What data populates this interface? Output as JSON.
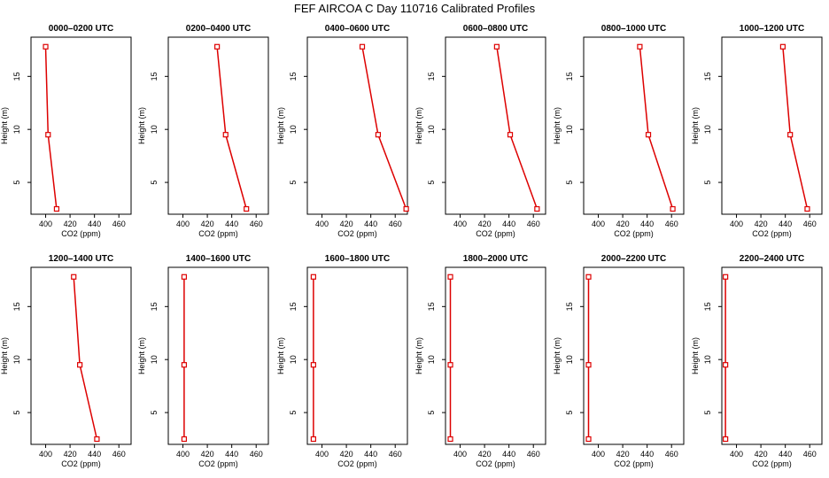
{
  "figure_title": "FEF AIRCOA C  Day 110716  Calibrated Profiles",
  "colors": {
    "series": "#dd0000",
    "frame": "#000000"
  },
  "chart_data": {
    "type": "line",
    "layout": "2 rows x 6 columns small multiples",
    "title": "FEF AIRCOA C  Day 110716  Calibrated Profiles",
    "xlabel": "CO2 (ppm)",
    "ylabel": "Height (m)",
    "xlim": [
      388,
      470
    ],
    "ylim": [
      2,
      18.7
    ],
    "xticks": [
      400,
      420,
      440,
      460
    ],
    "yticks": [
      5,
      10,
      15
    ],
    "panels": [
      {
        "title": "0000–0200 UTC",
        "points": [
          {
            "x": 409,
            "y": 2.5
          },
          {
            "x": 402,
            "y": 9.5
          },
          {
            "x": 400,
            "y": 17.8
          }
        ]
      },
      {
        "title": "0200–0400 UTC",
        "points": [
          {
            "x": 452,
            "y": 2.5
          },
          {
            "x": 435,
            "y": 9.5
          },
          {
            "x": 428,
            "y": 17.8
          }
        ]
      },
      {
        "title": "0400–0600 UTC",
        "points": [
          {
            "x": 469,
            "y": 2.5
          },
          {
            "x": 446,
            "y": 9.5
          },
          {
            "x": 433,
            "y": 17.8
          }
        ]
      },
      {
        "title": "0600–0800 UTC",
        "points": [
          {
            "x": 463,
            "y": 2.5
          },
          {
            "x": 441,
            "y": 9.5
          },
          {
            "x": 430,
            "y": 17.8
          }
        ]
      },
      {
        "title": "0800–1000 UTC",
        "points": [
          {
            "x": 461,
            "y": 2.5
          },
          {
            "x": 441,
            "y": 9.5
          },
          {
            "x": 434,
            "y": 17.8
          }
        ]
      },
      {
        "title": "1000–1200 UTC",
        "points": [
          {
            "x": 458,
            "y": 2.5
          },
          {
            "x": 444,
            "y": 9.5
          },
          {
            "x": 438,
            "y": 17.8
          }
        ]
      },
      {
        "title": "1200–1400 UTC",
        "points": [
          {
            "x": 442,
            "y": 2.5
          },
          {
            "x": 428,
            "y": 9.5
          },
          {
            "x": 423,
            "y": 17.8
          }
        ]
      },
      {
        "title": "1400–1600 UTC",
        "points": [
          {
            "x": 401,
            "y": 2.5
          },
          {
            "x": 401,
            "y": 9.5
          },
          {
            "x": 401,
            "y": 17.8
          }
        ]
      },
      {
        "title": "1600–1800 UTC",
        "points": [
          {
            "x": 393,
            "y": 2.5
          },
          {
            "x": 393,
            "y": 9.5
          },
          {
            "x": 393,
            "y": 17.8
          }
        ]
      },
      {
        "title": "1800–2000 UTC",
        "points": [
          {
            "x": 392,
            "y": 2.5
          },
          {
            "x": 392,
            "y": 9.5
          },
          {
            "x": 392,
            "y": 17.8
          }
        ]
      },
      {
        "title": "2000–2200 UTC",
        "points": [
          {
            "x": 392,
            "y": 2.5
          },
          {
            "x": 392,
            "y": 9.5
          },
          {
            "x": 392,
            "y": 17.8
          }
        ]
      },
      {
        "title": "2200–2400 UTC",
        "points": [
          {
            "x": 391,
            "y": 2.5
          },
          {
            "x": 391,
            "y": 9.5
          },
          {
            "x": 391,
            "y": 17.8
          }
        ]
      }
    ]
  }
}
